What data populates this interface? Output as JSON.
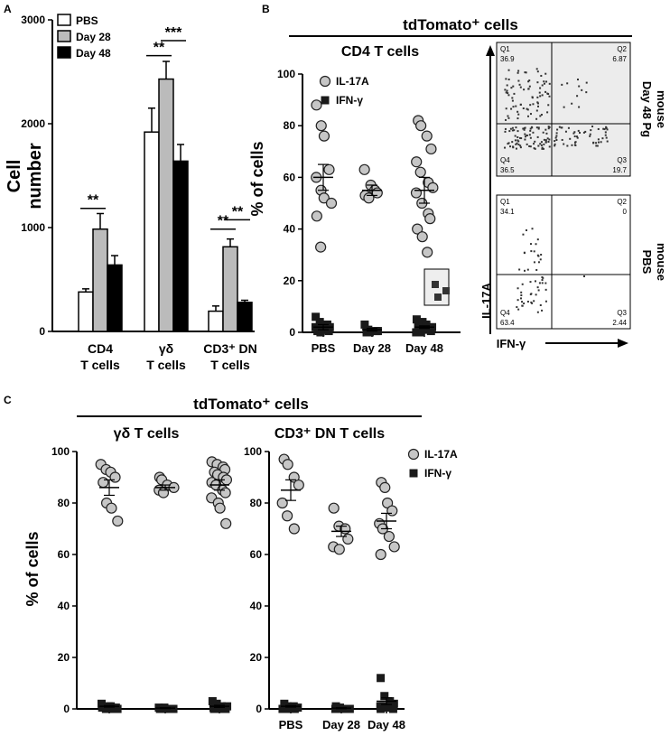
{
  "panel_letters": [
    "A",
    "B",
    "C"
  ],
  "colors": {
    "pbs": "#ffffff",
    "day28": "#bbbbbb",
    "day48": "#000000",
    "il17a": "#c6c6c6",
    "ifng": "#1a1a1a",
    "flow_bg": "#ececec"
  },
  "chart_data": [
    {
      "id": "A",
      "type": "bar",
      "ylabel": "Cell\nnumber",
      "ylim": [
        0,
        3000
      ],
      "yticks": [
        0,
        1000,
        2000,
        3000
      ],
      "categories": [
        [
          "CD4",
          "T cells"
        ],
        [
          "γδ",
          "T cells"
        ],
        [
          "CD3⁺ DN",
          "T cells"
        ]
      ],
      "series": [
        {
          "name": "PBS",
          "values": [
            380,
            1920,
            195
          ],
          "errors": [
            30,
            230,
            50
          ]
        },
        {
          "name": "Day 28",
          "values": [
            985,
            2430,
            815
          ],
          "errors": [
            150,
            170,
            75
          ]
        },
        {
          "name": "Day 48",
          "values": [
            640,
            1640,
            280
          ],
          "errors": [
            90,
            160,
            20
          ]
        }
      ],
      "significance": [
        {
          "label": "**",
          "category": 0,
          "from": 0,
          "to": 1,
          "y": 1185
        },
        {
          "label": "**",
          "category": 1,
          "from": 0,
          "to": 1,
          "y": 2655
        },
        {
          "label": "***",
          "category": 1,
          "from": 1,
          "to": 2,
          "y": 2800
        },
        {
          "label": "**",
          "category": 2,
          "from": 0,
          "to": 1,
          "y": 985
        },
        {
          "label": "**",
          "category": 2,
          "from": 1,
          "to": 2,
          "y": 1075
        }
      ],
      "legend": "top-left"
    },
    {
      "id": "B",
      "type": "scatter",
      "header": "tdTomato⁺ cells",
      "title": "CD4 T cells",
      "ylabel": "% of cells",
      "ylim": [
        0,
        100
      ],
      "yticks": [
        0,
        20,
        40,
        60,
        80,
        100
      ],
      "categories": [
        "PBS",
        "Day 28",
        "Day 48"
      ],
      "series": [
        {
          "name": "IL-17A",
          "marker": "circle",
          "points": [
            [
              88,
              80,
              76,
              63,
              60,
              55,
              52,
              50,
              45,
              33
            ],
            [
              63,
              57,
              55,
              54,
              53,
              52
            ],
            [
              82,
              80,
              76,
              71,
              66,
              62,
              58,
              56,
              54,
              50,
              46,
              44,
              40,
              37,
              31
            ]
          ],
          "mean": [
            60,
            55,
            55
          ],
          "sem": [
            5,
            2,
            5
          ]
        },
        {
          "name": "IFN-γ",
          "marker": "square",
          "points": [
            [
              6,
              4,
              3,
              2,
              2,
              1,
              1,
              0.5,
              0.5,
              0
            ],
            [
              3,
              1,
              0.5,
              0.5,
              0,
              0
            ],
            [
              5,
              4,
              3,
              2,
              2,
              1,
              1,
              0.5,
              0,
              0
            ]
          ],
          "mean": [
            2,
            1,
            2
          ],
          "sem": [
            1,
            0.5,
            0.5
          ]
        }
      ],
      "legend": "top-left"
    },
    {
      "id": "B-flow",
      "type": "scatter",
      "xlabel": "IFN-γ",
      "ylabel": "IL-17A",
      "plots": [
        {
          "label": "Day 48 Pg mouse",
          "quadrants": {
            "Q1": "36.9",
            "Q2": "6.87",
            "Q3": "19.7",
            "Q4": "36.5"
          }
        },
        {
          "label": "PBS mouse",
          "quadrants": {
            "Q1": "34.1",
            "Q2": "0",
            "Q3": "2.44",
            "Q4": "63.4"
          }
        }
      ]
    },
    {
      "id": "C-left",
      "type": "scatter",
      "header": "tdTomato⁺ cells",
      "title": "γδ T cells",
      "ylabel": "% of cells",
      "ylim": [
        0,
        100
      ],
      "yticks": [
        0,
        20,
        40,
        60,
        80,
        100
      ],
      "categories": [
        "PBS",
        "Day 28",
        "Day 48"
      ],
      "series": [
        {
          "name": "IL-17A",
          "marker": "circle",
          "points": [
            [
              95,
              93,
              92,
              90,
              88,
              80,
              78,
              73
            ],
            [
              90,
              89,
              87,
              86,
              85,
              84
            ],
            [
              96,
              95,
              94,
              93,
              92,
              91,
              90,
              89,
              88,
              87,
              85,
              84,
              82,
              80,
              78,
              72
            ]
          ],
          "mean": [
            86,
            86,
            87
          ],
          "sem": [
            3,
            1,
            2
          ]
        },
        {
          "name": "IFN-γ",
          "marker": "square",
          "points": [
            [
              2,
              1,
              1,
              0.5,
              0.5,
              0,
              0,
              0
            ],
            [
              0.5,
              0.5,
              0,
              0,
              0,
              0
            ],
            [
              3,
              2,
              1,
              1,
              0.5,
              0.5,
              0,
              0,
              0
            ]
          ],
          "mean": [
            1,
            0.3,
            1
          ],
          "sem": [
            0.3,
            0.2,
            0.4
          ]
        }
      ]
    },
    {
      "id": "C-right",
      "type": "scatter",
      "title": "CD3⁺ DN T cells",
      "ylim": [
        0,
        100
      ],
      "yticks": [
        0,
        20,
        40,
        60,
        80,
        100
      ],
      "categories": [
        "PBS",
        "Day 28",
        "Day 48"
      ],
      "series": [
        {
          "name": "IL-17A",
          "marker": "circle",
          "points": [
            [
              97,
              95,
              90,
              87,
              80,
              75,
              70
            ],
            [
              78,
              71,
              70,
              66,
              63,
              62
            ],
            [
              88,
              86,
              80,
              77,
              72,
              70,
              67,
              63,
              60
            ]
          ],
          "mean": [
            85,
            69,
            73
          ],
          "sem": [
            4,
            2,
            3
          ]
        },
        {
          "name": "IFN-γ",
          "marker": "square",
          "points": [
            [
              2,
              1,
              1,
              0.5,
              0,
              0,
              0
            ],
            [
              1,
              0.5,
              0,
              0,
              0,
              0
            ],
            [
              12,
              5,
              3,
              2,
              1,
              1,
              0.5,
              0,
              0
            ]
          ],
          "mean": [
            1,
            0.3,
            3
          ],
          "sem": [
            0.3,
            0.2,
            1.3
          ]
        }
      ],
      "legend": "top-right"
    }
  ]
}
